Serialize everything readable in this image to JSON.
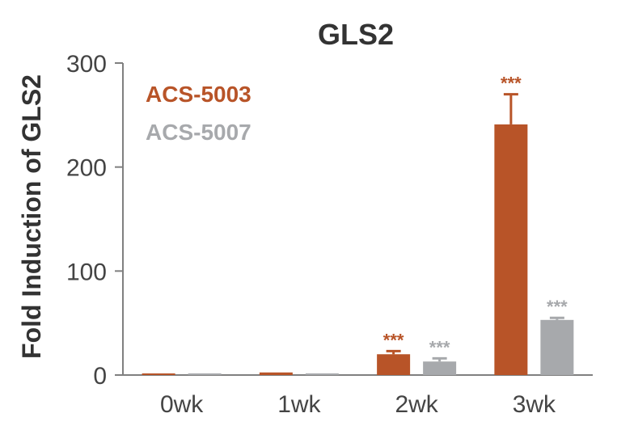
{
  "chart_data": {
    "type": "bar",
    "title": "GLS2",
    "xlabel": "",
    "ylabel": "Fold Induction of GLS2",
    "ylim": [
      0,
      300
    ],
    "yticks": [
      "0",
      "100",
      "200",
      "300"
    ],
    "categories": [
      "0wk",
      "1wk",
      "2wk",
      "3wk"
    ],
    "series": [
      {
        "name": "ACS-5003",
        "color": "#b85428",
        "values": [
          1.5,
          2.5,
          20,
          241
        ],
        "errors": [
          0,
          0,
          3,
          29
        ],
        "significance": [
          "",
          "",
          "***",
          "***"
        ]
      },
      {
        "name": "ACS-5007",
        "color": "#a7a9ac",
        "values": [
          1.5,
          1.5,
          13,
          53
        ],
        "errors": [
          0,
          0,
          3,
          2
        ],
        "significance": [
          "",
          "",
          "***",
          "***"
        ]
      }
    ],
    "legend_position": "top-left",
    "grid": false
  }
}
